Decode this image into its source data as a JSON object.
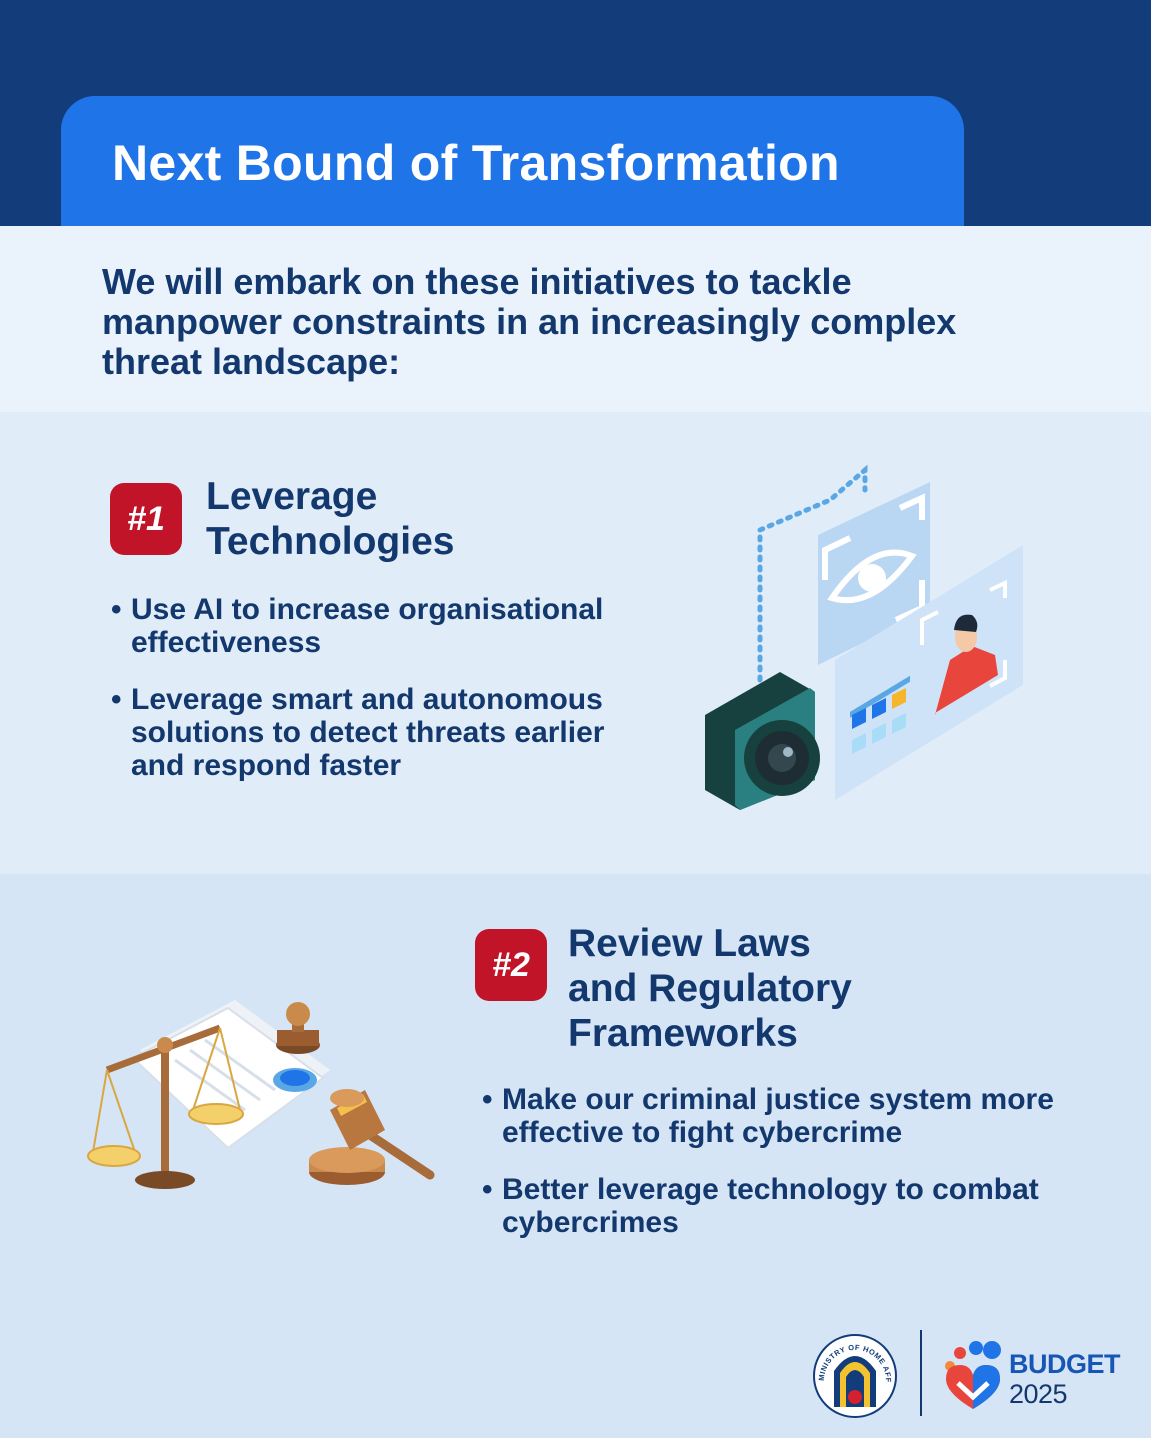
{
  "header": {
    "title": "Next Bound of Transformation"
  },
  "intro": {
    "text": "We will embark on these initiatives to tackle manpower constraints in an increasingly complex threat landscape:"
  },
  "initiatives": [
    {
      "badge": "#1",
      "title_line1": "Leverage",
      "title_line2": "Technologies",
      "bullets": [
        "Use AI to increase organisational effectiveness",
        "Leverage smart and autonomous solutions to detect threats earlier and respond faster"
      ]
    },
    {
      "badge": "#2",
      "title_line1": "Review Laws",
      "title_line2": "and Regulatory",
      "title_line3": "Frameworks",
      "bullets": [
        "Make our criminal justice system more effective to fight cybercrime",
        "Better leverage technology to combat cybercrimes"
      ]
    }
  ],
  "footer": {
    "ministry_seal_text": "MINISTRY OF HOME AFFAIRS",
    "budget_label": "BUDGET",
    "budget_year": "2025"
  },
  "colors": {
    "navy": "#123d7a",
    "title_blue": "#1f74e8",
    "badge_red": "#c21428",
    "text_navy": "#13386d"
  },
  "icons": [
    "surveillance-camera-icon",
    "eye-scan-icon",
    "profile-scan-icon",
    "scales-of-justice-icon",
    "gavel-icon",
    "stamp-icon",
    "ministry-seal-icon",
    "budget-logo-icon"
  ]
}
